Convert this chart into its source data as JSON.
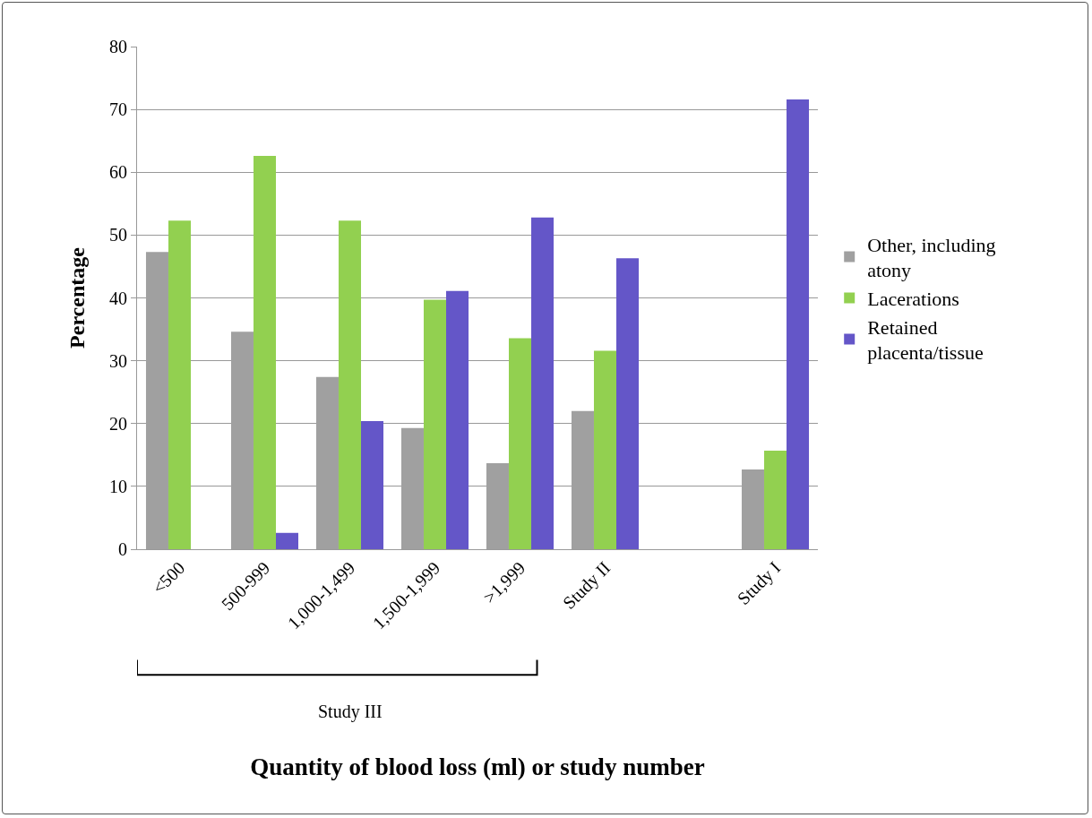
{
  "chart_data": {
    "type": "bar",
    "xlabel": "Quantity of blood loss (ml) or study number",
    "ylabel": "Percentage",
    "categories": [
      "<500",
      "500-999",
      "1,000-1,499",
      "1,500-1,999",
      ">1,999",
      "Study II",
      null,
      "Study I"
    ],
    "series": [
      {
        "name": "Other, including atony",
        "color": "#a0a0a0",
        "values": [
          47.3,
          34.6,
          27.4,
          19.3,
          13.7,
          22.0,
          null,
          12.7
        ]
      },
      {
        "name": "Lacerations",
        "color": "#92d050",
        "values": [
          52.3,
          62.6,
          52.3,
          39.7,
          33.6,
          31.6,
          null,
          15.7
        ]
      },
      {
        "name": "Retained placenta/tissue",
        "color": "#6456c8",
        "values": [
          null,
          2.6,
          20.4,
          41.1,
          52.8,
          46.3,
          null,
          71.6
        ]
      }
    ],
    "ylim": [
      0,
      80
    ],
    "yticks": [
      0,
      10,
      20,
      30,
      40,
      50,
      60,
      70,
      80
    ],
    "grid": "y",
    "legend": "right",
    "annotations": [
      "Study III"
    ]
  }
}
